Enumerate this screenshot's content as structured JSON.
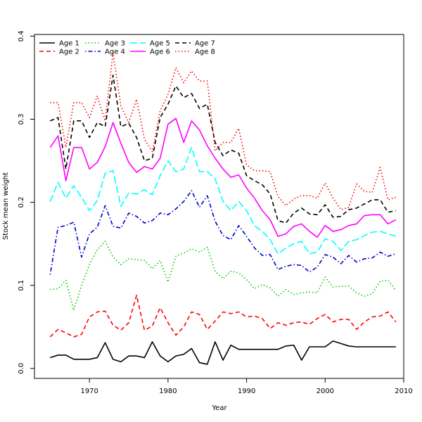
{
  "chart_data": {
    "type": "line",
    "title": "",
    "xlabel": "Year",
    "ylabel": "Stock mean weight",
    "xlim": [
      1963,
      2010
    ],
    "ylim": [
      -0.012,
      0.402
    ],
    "x_ticks": [
      1970,
      1980,
      1990,
      2000,
      2010
    ],
    "y_ticks": [
      0.0,
      0.1,
      0.2,
      0.3,
      0.4
    ],
    "y_tick_labels": [
      "0.0",
      "0.1",
      "0.2",
      "0.3",
      "0.4"
    ],
    "grid": false,
    "legend_position": "top-left",
    "x": [
      1965,
      1966,
      1967,
      1968,
      1969,
      1970,
      1971,
      1972,
      1973,
      1974,
      1975,
      1976,
      1977,
      1978,
      1979,
      1980,
      1981,
      1982,
      1983,
      1984,
      1985,
      1986,
      1987,
      1988,
      1989,
      1990,
      1991,
      1992,
      1993,
      1994,
      1995,
      1996,
      1997,
      1998,
      1999,
      2000,
      2001,
      2002,
      2003,
      2004,
      2005,
      2006,
      2007,
      2008,
      2009
    ],
    "series": [
      {
        "name": "Age 1",
        "color": "#000000",
        "dash": "solid",
        "values": [
          0.013,
          0.016,
          0.016,
          0.011,
          0.011,
          0.011,
          0.013,
          0.031,
          0.011,
          0.008,
          0.015,
          0.015,
          0.013,
          0.032,
          0.015,
          0.008,
          0.015,
          0.017,
          0.024,
          0.007,
          0.005,
          0.032,
          0.01,
          0.028,
          0.023,
          0.023,
          0.023,
          0.023,
          0.023,
          0.023,
          0.027,
          0.028,
          0.01,
          0.026,
          0.026,
          0.026,
          0.033,
          0.03,
          0.027,
          0.026,
          0.026,
          0.026,
          0.026,
          0.026,
          0.026
        ]
      },
      {
        "name": "Age 2",
        "color": "#ff0000",
        "dash": "dashed",
        "values": [
          0.038,
          0.047,
          0.043,
          0.038,
          0.041,
          0.062,
          0.068,
          0.069,
          0.052,
          0.046,
          0.055,
          0.088,
          0.046,
          0.051,
          0.073,
          0.055,
          0.04,
          0.05,
          0.068,
          0.065,
          0.047,
          0.057,
          0.068,
          0.066,
          0.068,
          0.062,
          0.063,
          0.06,
          0.048,
          0.055,
          0.052,
          0.055,
          0.056,
          0.053,
          0.06,
          0.065,
          0.056,
          0.059,
          0.059,
          0.047,
          0.056,
          0.062,
          0.063,
          0.068,
          0.056
        ]
      },
      {
        "name": "Age 3",
        "color": "#00cd00",
        "dash": "dotted",
        "values": [
          0.095,
          0.096,
          0.106,
          0.07,
          0.1,
          0.125,
          0.143,
          0.153,
          0.134,
          0.125,
          0.132,
          0.131,
          0.13,
          0.12,
          0.13,
          0.104,
          0.135,
          0.139,
          0.144,
          0.14,
          0.146,
          0.117,
          0.108,
          0.117,
          0.115,
          0.107,
          0.096,
          0.101,
          0.097,
          0.087,
          0.095,
          0.089,
          0.091,
          0.092,
          0.091,
          0.11,
          0.098,
          0.099,
          0.099,
          0.091,
          0.087,
          0.09,
          0.105,
          0.106,
          0.094
        ]
      },
      {
        "name": "Age 4",
        "color": "#0000cd",
        "dash": "dotdash",
        "values": [
          0.113,
          0.17,
          0.172,
          0.176,
          0.134,
          0.162,
          0.17,
          0.196,
          0.171,
          0.169,
          0.187,
          0.183,
          0.175,
          0.178,
          0.187,
          0.185,
          0.192,
          0.201,
          0.214,
          0.194,
          0.208,
          0.177,
          0.16,
          0.155,
          0.172,
          0.159,
          0.145,
          0.136,
          0.137,
          0.119,
          0.123,
          0.125,
          0.124,
          0.116,
          0.122,
          0.137,
          0.134,
          0.126,
          0.136,
          0.128,
          0.132,
          0.133,
          0.14,
          0.135,
          0.138
        ]
      },
      {
        "name": "Age 5",
        "color": "#00ffff",
        "dash": "longdash",
        "values": [
          0.201,
          0.224,
          0.205,
          0.22,
          0.206,
          0.19,
          0.202,
          0.235,
          0.238,
          0.195,
          0.211,
          0.21,
          0.215,
          0.209,
          0.232,
          0.25,
          0.237,
          0.24,
          0.266,
          0.237,
          0.237,
          0.228,
          0.201,
          0.19,
          0.201,
          0.19,
          0.172,
          0.165,
          0.155,
          0.138,
          0.145,
          0.15,
          0.153,
          0.138,
          0.14,
          0.156,
          0.153,
          0.142,
          0.153,
          0.155,
          0.16,
          0.164,
          0.165,
          0.162,
          0.159
        ]
      },
      {
        "name": "Age 6",
        "color": "#ff00ff",
        "dash": "solid",
        "values": [
          0.266,
          0.28,
          0.226,
          0.266,
          0.266,
          0.24,
          0.248,
          0.267,
          0.296,
          0.271,
          0.248,
          0.236,
          0.243,
          0.24,
          0.253,
          0.294,
          0.301,
          0.272,
          0.298,
          0.287,
          0.268,
          0.253,
          0.24,
          0.23,
          0.233,
          0.217,
          0.205,
          0.19,
          0.179,
          0.159,
          0.162,
          0.171,
          0.174,
          0.165,
          0.158,
          0.172,
          0.165,
          0.167,
          0.172,
          0.174,
          0.184,
          0.185,
          0.185,
          0.174,
          0.179
        ]
      },
      {
        "name": "Age 7",
        "color": "#000000",
        "dash": "dashed",
        "values": [
          0.298,
          0.302,
          0.24,
          0.298,
          0.298,
          0.278,
          0.296,
          0.291,
          0.353,
          0.291,
          0.295,
          0.278,
          0.25,
          0.253,
          0.302,
          0.318,
          0.34,
          0.326,
          0.331,
          0.313,
          0.318,
          0.272,
          0.256,
          0.263,
          0.259,
          0.232,
          0.226,
          0.221,
          0.21,
          0.178,
          0.175,
          0.187,
          0.193,
          0.186,
          0.185,
          0.197,
          0.182,
          0.183,
          0.191,
          0.193,
          0.198,
          0.203,
          0.203,
          0.188,
          0.19
        ]
      },
      {
        "name": "Age 8",
        "color": "#ff0000",
        "dash": "dotted",
        "values": [
          0.32,
          0.32,
          0.266,
          0.32,
          0.32,
          0.302,
          0.328,
          0.298,
          0.38,
          0.316,
          0.296,
          0.324,
          0.276,
          0.261,
          0.31,
          0.33,
          0.362,
          0.344,
          0.358,
          0.346,
          0.346,
          0.262,
          0.272,
          0.272,
          0.289,
          0.245,
          0.238,
          0.238,
          0.237,
          0.207,
          0.196,
          0.204,
          0.208,
          0.208,
          0.205,
          0.223,
          0.205,
          0.191,
          0.194,
          0.222,
          0.213,
          0.212,
          0.242,
          0.203,
          0.206
        ]
      }
    ]
  }
}
